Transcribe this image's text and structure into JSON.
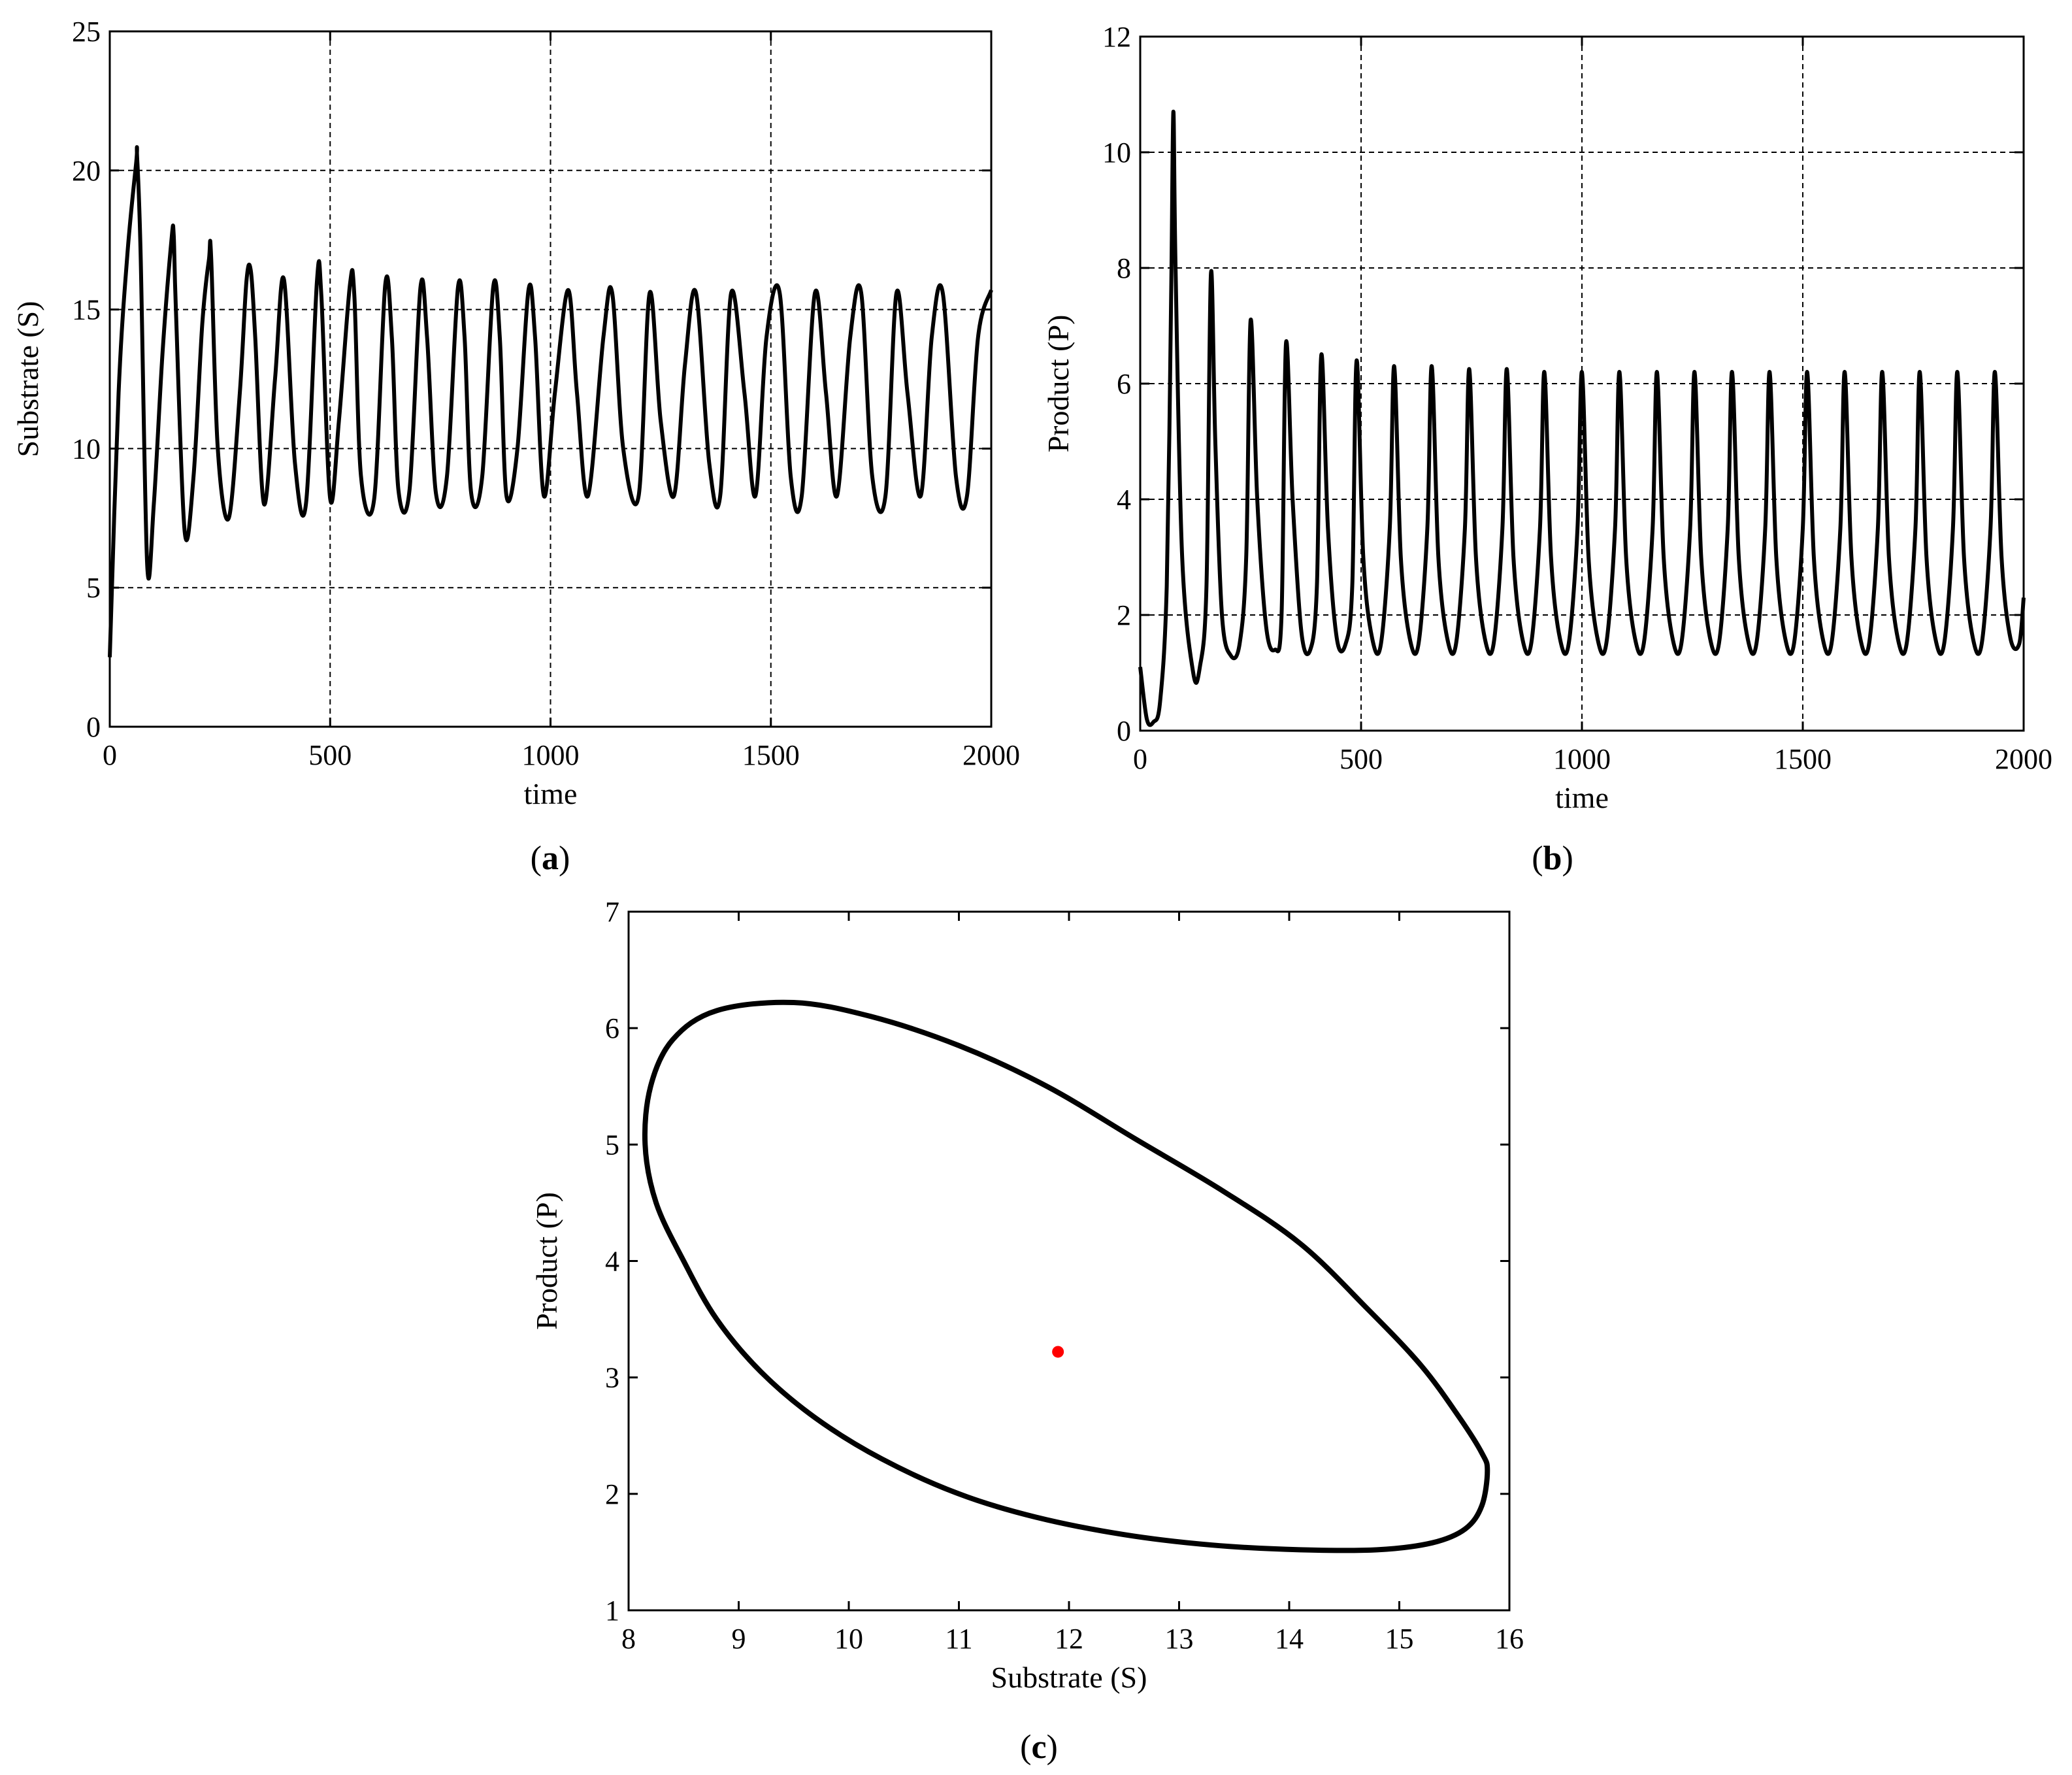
{
  "chart_data": [
    {
      "id": "a",
      "panel_label": "a",
      "type": "line",
      "title": "",
      "xlabel": "time",
      "ylabel": "Substrate (S)",
      "xlim": [
        0,
        2000
      ],
      "ylim": [
        0,
        25
      ],
      "xticks": [
        0,
        500,
        1000,
        1500,
        2000
      ],
      "yticks": [
        0,
        5,
        10,
        15,
        20,
        25
      ],
      "grid": true,
      "series": [
        {
          "name": "Substrate (S)",
          "color": "#000000",
          "x": [
            0,
            20,
            40,
            60,
            62,
            70,
            85,
            100,
            120,
            140,
            145,
            150,
            170,
            190,
            210,
            225,
            230,
            245,
            270,
            295,
            310,
            320,
            330,
            350,
            375,
            395,
            420,
            445,
            470,
            480,
            500,
            520,
            545,
            555,
            570,
            600,
            625,
            640,
            655,
            680,
            705,
            720,
            740,
            765,
            790,
            805,
            820,
            845,
            870,
            885,
            900,
            925,
            950,
            965,
            985,
            1010,
            1040,
            1060,
            1085,
            1120,
            1140,
            1165,
            1200,
            1225,
            1250,
            1280,
            1305,
            1330,
            1360,
            1385,
            1410,
            1440,
            1465,
            1490,
            1520,
            1545,
            1570,
            1600,
            1625,
            1650,
            1680,
            1705,
            1730,
            1760,
            1785,
            1810,
            1840,
            1865,
            1890,
            1920,
            1945,
            1970,
            2000
          ],
          "y": [
            2.5,
            12,
            17,
            20.3,
            20.5,
            17,
            5.8,
            8,
            13.5,
            17.5,
            17.7,
            15,
            7,
            9,
            14.5,
            16.8,
            16.9,
            10,
            7.5,
            12,
            16,
            16.4,
            14,
            8,
            12.5,
            16.1,
            9.5,
            8,
            16,
            15.5,
            8.2,
            11,
            15.9,
            15.5,
            9,
            8.2,
            15.9,
            14,
            8.5,
            8.5,
            15.8,
            14,
            8.4,
            9,
            15.8,
            14,
            8.4,
            9,
            15.8,
            14,
            8.3,
            10,
            15.7,
            14,
            8.3,
            12,
            15.7,
            12,
            8.3,
            14,
            15.6,
            10,
            8.3,
            15.6,
            11,
            8.3,
            13,
            15.6,
            9.5,
            8.3,
            15.6,
            12,
            8.3,
            14,
            15.6,
            9,
            8.3,
            15.6,
            12,
            8.3,
            14,
            15.6,
            9,
            8.3,
            15.6,
            12,
            8.3,
            14,
            15.6,
            9,
            8.3,
            14,
            15.7
          ]
        }
      ]
    },
    {
      "id": "b",
      "panel_label": "b",
      "type": "line",
      "title": "",
      "xlabel": "time",
      "ylabel": "Product (P)",
      "xlim": [
        0,
        2000
      ],
      "ylim": [
        0,
        12
      ],
      "xticks": [
        0,
        500,
        1000,
        1500,
        2000
      ],
      "yticks": [
        0,
        2,
        4,
        6,
        8,
        10,
        12
      ],
      "grid": true,
      "series": [
        {
          "name": "Product (P)",
          "color": "#000000",
          "x": [
            0,
            15,
            30,
            45,
            60,
            70,
            75,
            80,
            95,
            120,
            135,
            150,
            160,
            170,
            185,
            205,
            225,
            240,
            250,
            265,
            285,
            305,
            320,
            330,
            345,
            365,
            385,
            400,
            410,
            425,
            445,
            465,
            480,
            490,
            505,
            525,
            545,
            565,
            575,
            590,
            610,
            630,
            650,
            660,
            675,
            695,
            715,
            735,
            745,
            760,
            780,
            800,
            820,
            830,
            845,
            865,
            885,
            905,
            915,
            930,
            950,
            970,
            990,
            1000,
            1015,
            1035,
            1055,
            1075,
            1085,
            1100,
            1120,
            1140,
            1160,
            1170,
            1185,
            1205,
            1225,
            1245,
            1255,
            1270,
            1290,
            1310,
            1330,
            1340,
            1355,
            1375,
            1395,
            1415,
            1425,
            1440,
            1460,
            1480,
            1500,
            1510,
            1525,
            1545,
            1565,
            1585,
            1595,
            1610,
            1630,
            1650,
            1670,
            1680,
            1695,
            1715,
            1735,
            1755,
            1765,
            1780,
            1800,
            1820,
            1840,
            1850,
            1865,
            1885,
            1905,
            1925,
            1935,
            1950,
            1970,
            1990,
            2000
          ],
          "y": [
            1.1,
            0.2,
            0.15,
            0.5,
            2.5,
            7.5,
            10.7,
            8,
            3,
            1,
            1.1,
            2.5,
            7.9,
            5,
            2,
            1.3,
            1.5,
            3,
            7.1,
            4,
            1.8,
            1.4,
            2,
            6.7,
            4,
            1.7,
            1.4,
            2.5,
            6.5,
            3.5,
            1.6,
            1.5,
            2.5,
            6.4,
            3,
            1.6,
            1.5,
            3.5,
            6.3,
            3,
            1.6,
            1.5,
            3.5,
            6.3,
            3,
            1.6,
            1.5,
            3.5,
            6.25,
            3,
            1.6,
            1.5,
            3.5,
            6.25,
            3,
            1.6,
            1.5,
            3.5,
            6.2,
            3,
            1.6,
            1.5,
            3.5,
            6.2,
            3,
            1.6,
            1.5,
            3.5,
            6.2,
            3,
            1.6,
            1.5,
            3.5,
            6.2,
            3,
            1.6,
            1.5,
            3.5,
            6.2,
            3,
            1.6,
            1.5,
            3.5,
            6.2,
            3,
            1.6,
            1.5,
            3.5,
            6.2,
            3,
            1.6,
            1.5,
            3.5,
            6.2,
            3,
            1.6,
            1.5,
            3.5,
            6.2,
            3,
            1.6,
            1.5,
            3.5,
            6.2,
            3,
            1.6,
            1.5,
            3.5,
            6.2,
            3,
            1.6,
            1.5,
            3.5,
            6.2,
            3,
            1.6,
            1.5,
            3.5,
            6.2,
            3,
            1.6,
            1.5,
            2.3
          ]
        }
      ]
    },
    {
      "id": "c",
      "panel_label": "c",
      "type": "line",
      "title": "",
      "xlabel": "Substrate (S)",
      "ylabel": "Product (P)",
      "xlim": [
        8,
        16
      ],
      "ylim": [
        1,
        7
      ],
      "xticks": [
        8,
        9,
        10,
        11,
        12,
        13,
        14,
        15,
        16
      ],
      "yticks": [
        1,
        2,
        3,
        4,
        5,
        6,
        7
      ],
      "grid": false,
      "series": [
        {
          "name": "limit cycle",
          "color": "#000000",
          "closed": true,
          "x": [
            15.8,
            15.75,
            15.6,
            15.3,
            14.8,
            14.1,
            13.3,
            12.5,
            11.7,
            11.0,
            10.3,
            9.7,
            9.2,
            8.8,
            8.5,
            8.25,
            8.15,
            8.2,
            8.4,
            8.8,
            9.5,
            10.2,
            11.0,
            11.8,
            12.6,
            13.4,
            14.1,
            14.7,
            15.2,
            15.55,
            15.75
          ],
          "y": [
            2.2,
            1.9,
            1.7,
            1.58,
            1.52,
            1.52,
            1.56,
            1.65,
            1.8,
            2.0,
            2.3,
            2.65,
            3.05,
            3.5,
            4.0,
            4.5,
            5.0,
            5.5,
            5.9,
            6.15,
            6.22,
            6.1,
            5.85,
            5.5,
            5.05,
            4.6,
            4.15,
            3.6,
            3.1,
            2.65,
            2.35
          ]
        },
        {
          "name": "equilibrium point",
          "type": "scatter",
          "color": "#ff0000",
          "x": [
            11.9
          ],
          "y": [
            3.22
          ]
        }
      ]
    }
  ]
}
